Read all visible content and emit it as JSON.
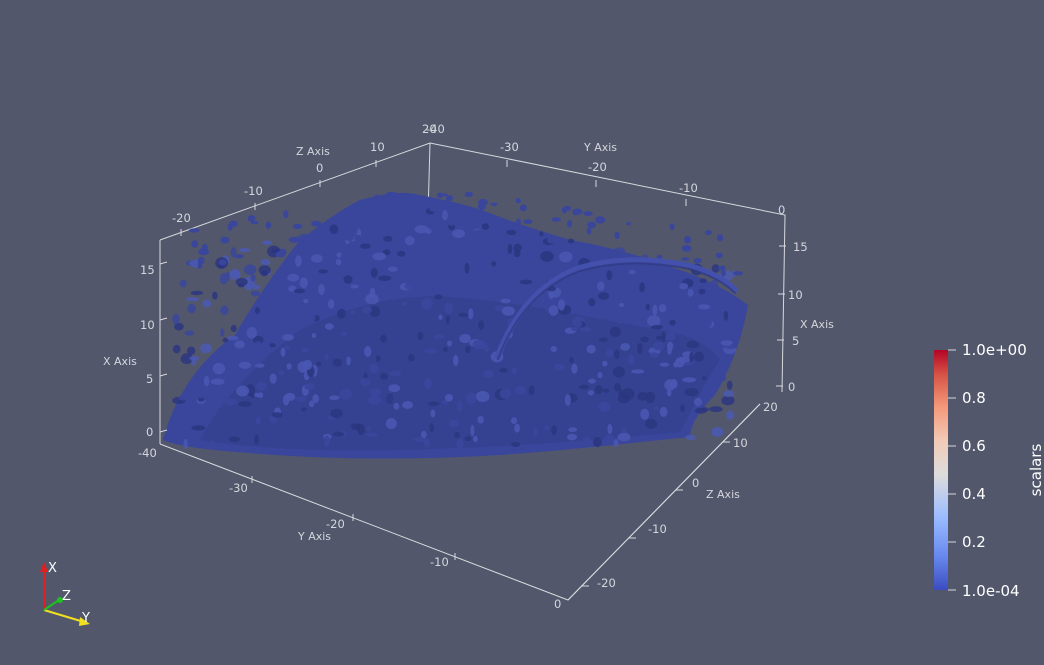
{
  "colors": {
    "background": "#52576b",
    "surface": "#3a469c",
    "surface_dark": "#2c3680",
    "surface_light": "#4b58b3",
    "axis_grid": "#d8d9de",
    "colormap": [
      "#3b4cc0",
      "#6788ee",
      "#9abbff",
      "#c9d7f0",
      "#edd1c2",
      "#f7a889",
      "#e26952",
      "#b40426"
    ],
    "orient_x": "#e02020",
    "orient_y": "#f0e020",
    "orient_z": "#20c020"
  },
  "viewport": {
    "render_style": "surface",
    "object": "isosurface-blobs-icon"
  },
  "cube_axes": {
    "z_axis_top": {
      "title": "Z Axis",
      "ticks": [
        "-20",
        "-10",
        "0",
        "10",
        "20"
      ]
    },
    "y_axis_top": {
      "title": "Y Axis",
      "ticks": [
        "-40",
        "-30",
        "-20",
        "-10",
        "0"
      ]
    },
    "x_axis_left": {
      "title": "X Axis",
      "ticks": [
        "0",
        "5",
        "10",
        "15"
      ]
    },
    "x_axis_right": {
      "title": "X Axis",
      "ticks": [
        "0",
        "5",
        "10",
        "15"
      ]
    },
    "y_axis_bottom": {
      "title": "Y Axis",
      "ticks": [
        "-40",
        "-30",
        "-20",
        "-10",
        "0"
      ]
    },
    "z_axis_bottom": {
      "title": "Z Axis",
      "ticks": [
        "20",
        "10",
        "0",
        "-10",
        "-20"
      ]
    }
  },
  "color_bar": {
    "title": "scalars",
    "labels": [
      "1.0e+00",
      "0.8",
      "0.6",
      "0.4",
      "0.2",
      "1.0e-04"
    ],
    "range": [
      0.0001,
      1.0
    ],
    "colormap_name": "Cool to Warm"
  },
  "orientation_axes": {
    "x_label": "X",
    "y_label": "Y",
    "z_label": "Z"
  }
}
